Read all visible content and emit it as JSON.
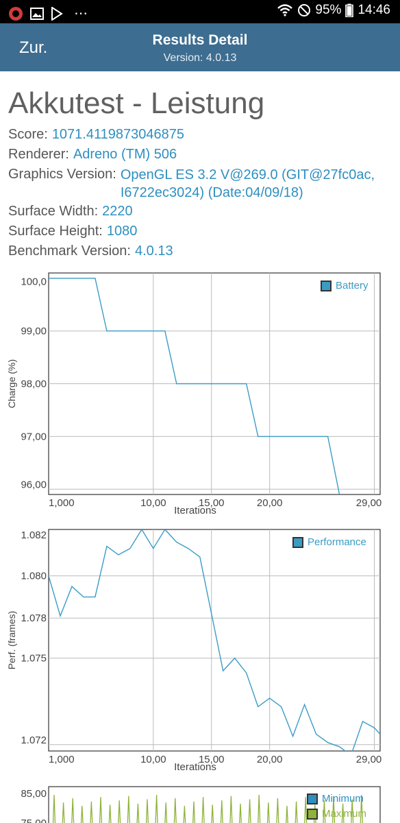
{
  "status": {
    "battery": "95%",
    "time": "14:46",
    "icons": [
      "vivaldi-icon",
      "gallery-icon",
      "play-store-icon",
      "more-icon",
      "wifi-icon",
      "do-not-disturb-icon"
    ]
  },
  "app_bar": {
    "back_label": "Zur.",
    "title": "Results Detail",
    "subtitle": "Version: 4.0.13"
  },
  "result": {
    "title": "Akkutest - Leistung",
    "rows": [
      {
        "label": "Score:",
        "value": "1071.4119873046875"
      },
      {
        "label": "Renderer:",
        "value": "Adreno (TM) 506"
      },
      {
        "label": "Graphics Version:",
        "value": "OpenGL ES 3.2 V@269.0 (GIT@27fc0ac, I6722ec3024) (Date:04/09/18)"
      },
      {
        "label": "Surface Width:",
        "value": "2220"
      },
      {
        "label": "Surface Height:",
        "value": "1080"
      },
      {
        "label": "Benchmark Version:",
        "value": "4.0.13"
      }
    ]
  },
  "colors": {
    "accent": "#3d6d90",
    "value_text": "#2e8fc0",
    "battery_line": "#3a9cc4",
    "performance_line": "#3a9cc4",
    "minimum_line": "#2e8fc0",
    "maximum_line": "#8db33a"
  },
  "chart_data": [
    {
      "type": "line",
      "xlabel": "Iterations",
      "ylabel": "Charge (%)",
      "x_ticks": [
        "1,000",
        "10,00",
        "15,00",
        "20,00",
        "29,00"
      ],
      "y_ticks": [
        "100,0",
        "99,00",
        "98,00",
        "97,00",
        "96,00"
      ],
      "xlim": [
        0,
        28.5
      ],
      "ylim": [
        95.9,
        100.1
      ],
      "series": [
        {
          "name": "Battery",
          "x": [
            0,
            4,
            5,
            10,
            11,
            17,
            18,
            24,
            25
          ],
          "y": [
            100,
            100,
            99,
            99,
            98,
            98,
            97,
            97,
            95.9
          ]
        }
      ]
    },
    {
      "type": "line",
      "xlabel": "Iterations",
      "ylabel": "Perf. (frames)",
      "x_ticks": [
        "1,000",
        "10,00",
        "15,00",
        "20,00",
        "29,00"
      ],
      "y_ticks": [
        "1.082",
        "1.080",
        "1.078",
        "1.075",
        "1.072"
      ],
      "xlim": [
        0,
        28.5
      ],
      "ylim": [
        1.0719,
        1.0824
      ],
      "series": [
        {
          "name": "Performance",
          "x": [
            0,
            1,
            2,
            3,
            4,
            5,
            6,
            7,
            8,
            9,
            10,
            11,
            12,
            13,
            14,
            15,
            16,
            17,
            18,
            19,
            20,
            21,
            22,
            23,
            24,
            25,
            26,
            27,
            28,
            28.5
          ],
          "y": [
            1.0802,
            1.0783,
            1.0797,
            1.0792,
            1.0792,
            1.0816,
            1.0812,
            1.0815,
            1.0824,
            1.0815,
            1.0824,
            1.0818,
            1.0815,
            1.0811,
            1.0784,
            1.0757,
            1.0763,
            1.0756,
            1.074,
            1.0744,
            1.074,
            1.0726,
            1.0741,
            1.0727,
            1.0723,
            1.0721,
            1.0717,
            1.0733,
            1.073,
            1.0727
          ]
        }
      ]
    },
    {
      "type": "line",
      "ylabel": "",
      "y_ticks": [
        "85,00",
        "75,00"
      ],
      "series": [
        {
          "name": "Minimum"
        },
        {
          "name": "Maximum"
        }
      ]
    }
  ]
}
